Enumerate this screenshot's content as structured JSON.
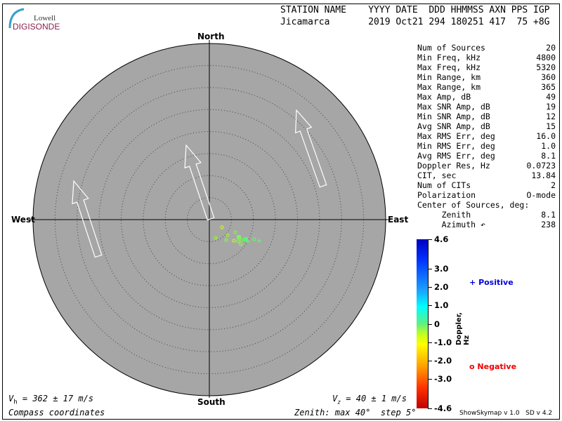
{
  "logo": {
    "line1": "Lowell",
    "line2": "DIGISONDE"
  },
  "header": {
    "labels": "STATION NAME    YYYY DATE  DDD HHMMSS AXN PPS IGP",
    "values": "Jicamarca       2019 Oct21 294 180251 417  75 +8G"
  },
  "compass": {
    "north": "North",
    "south": "South",
    "east": "East",
    "west": "West"
  },
  "stats": [
    {
      "label": "Num of Sources",
      "value": "20"
    },
    {
      "label": "Min Freq, kHz",
      "value": "4800"
    },
    {
      "label": "Max Freq, kHz",
      "value": "5320"
    },
    {
      "label": "Min Range, km",
      "value": "360"
    },
    {
      "label": "Max Range, km",
      "value": "365"
    },
    {
      "label": "Max Amp, dB",
      "value": "49"
    },
    {
      "label": "Max SNR Amp, dB",
      "value": "19"
    },
    {
      "label": "Min SNR Amp, dB",
      "value": "12"
    },
    {
      "label": "Avg SNR Amp, dB",
      "value": "15"
    },
    {
      "label": "Max RMS Err, deg",
      "value": "16.0"
    },
    {
      "label": "Min RMS Err, deg",
      "value": "1.0"
    },
    {
      "label": "Avg RMS Err, deg",
      "value": "8.1"
    },
    {
      "label": "Doppler Res, Hz",
      "value": "0.0723"
    },
    {
      "label": "CIT, sec",
      "value": "13.84"
    },
    {
      "label": "Num of CITs",
      "value": "2"
    },
    {
      "label": "Polarization",
      "value": "O-mode"
    },
    {
      "label": "Center of Sources, deg:",
      "value": ""
    },
    {
      "label": "     Zenith",
      "value": "8.1"
    },
    {
      "label": "     Azimuth ↶",
      "value": "238"
    }
  ],
  "colorbar": {
    "label": "Doppler, Hz",
    "ticks": [
      "4.6",
      "3.0",
      "2.0",
      "1.0",
      "0",
      "-1.0",
      "-2.0",
      "-3.0",
      "-4.6"
    ],
    "range": [
      -4.6,
      4.6
    ]
  },
  "legend": {
    "positive": "Positive",
    "negative": "Negative",
    "positive_color": "#0000dd",
    "negative_color": "#ee0000",
    "positive_symbol": "+",
    "negative_symbol": "o"
  },
  "footer": {
    "vh_sym": "V",
    "vh_sub": "h",
    "vh_text": " = 362 ± 17 m/s",
    "vz_sym": "V",
    "vz_sub": "z",
    "vz_text": " = 40 ± 1 m/s",
    "coords": "Compass coordinates",
    "zenith": "Zenith: max 40°  step 5°",
    "version": "ShowSkymap v 1.0   SD v 4.2"
  },
  "colors": {
    "plot_bg": "#a6a6a6",
    "rings": "#444444"
  }
}
